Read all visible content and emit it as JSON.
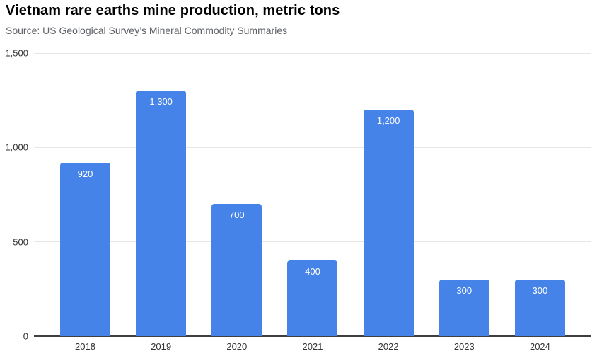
{
  "header": {
    "title": "Vietnam rare earths mine production, metric tons",
    "source": "Source: US Geological Survey’s Mineral Commodity Summaries"
  },
  "chart_data": {
    "type": "bar",
    "title": "Vietnam rare earths mine production, metric tons",
    "source_note": "Source: US Geological Survey’s Mineral Commodity Summaries",
    "categories": [
      "2018",
      "2019",
      "2020",
      "2021",
      "2022",
      "2023",
      "2024"
    ],
    "values": [
      920,
      1300,
      700,
      400,
      1200,
      300,
      300
    ],
    "value_labels": [
      "920",
      "1,300",
      "700",
      "400",
      "1,200",
      "300",
      "300"
    ],
    "xlabel": "",
    "ylabel": "",
    "ylim": [
      0,
      1500
    ],
    "yticks": [
      0,
      500,
      1000,
      1500
    ],
    "ytick_labels": [
      "0",
      "500",
      "1,000",
      "1,500"
    ],
    "grid": "horizontal",
    "legend": "none",
    "colors": {
      "bar": "#4683e8",
      "grid": "#e6e6e6",
      "axis_line": "#3c4043",
      "tick_text": "#333333",
      "value_label": "#ffffff",
      "title": "#000000",
      "subtitle": "#5f6368"
    }
  }
}
